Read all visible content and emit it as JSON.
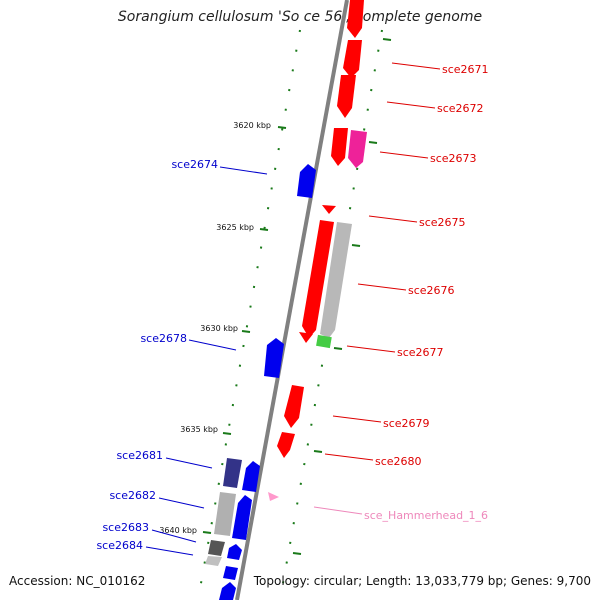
{
  "title": "Sorangium cellulosum 'So ce 56', complete genome",
  "footer": {
    "accession": "Accession: NC_010162",
    "summary": "Topology: circular; Length: 13,033,779 bp; Genes: 9,700"
  },
  "colors": {
    "forward_gene": "#ff0000",
    "reverse_gene": "#0000ee",
    "pseudo_gene": "#b0b0b0",
    "rna_gene": "#55cc55",
    "misc_feature": "#ff44aa",
    "backbone": "#888888",
    "tick": "#1a7a1a",
    "label_forward": "#dd0000",
    "label_reverse": "#0000cc",
    "label_misc": "#ee88bb"
  },
  "ticks": [
    {
      "label": "3620 kbp"
    },
    {
      "label": "3625 kbp"
    },
    {
      "label": "3630 kbp"
    },
    {
      "label": "3635 kbp"
    },
    {
      "label": "3640 kbp"
    }
  ],
  "genes_forward": [
    {
      "label": "sce2671"
    },
    {
      "label": "sce2672"
    },
    {
      "label": "sce2673"
    },
    {
      "label": "sce2675"
    },
    {
      "label": "sce2676"
    },
    {
      "label": "sce2677"
    },
    {
      "label": "sce2679"
    },
    {
      "label": "sce2680"
    },
    {
      "label": "sce_Hammerhead_1_6"
    }
  ],
  "genes_reverse": [
    {
      "label": "sce2674"
    },
    {
      "label": "sce2678"
    },
    {
      "label": "sce2681"
    },
    {
      "label": "sce2682"
    },
    {
      "label": "sce2683"
    },
    {
      "label": "sce2684"
    }
  ]
}
